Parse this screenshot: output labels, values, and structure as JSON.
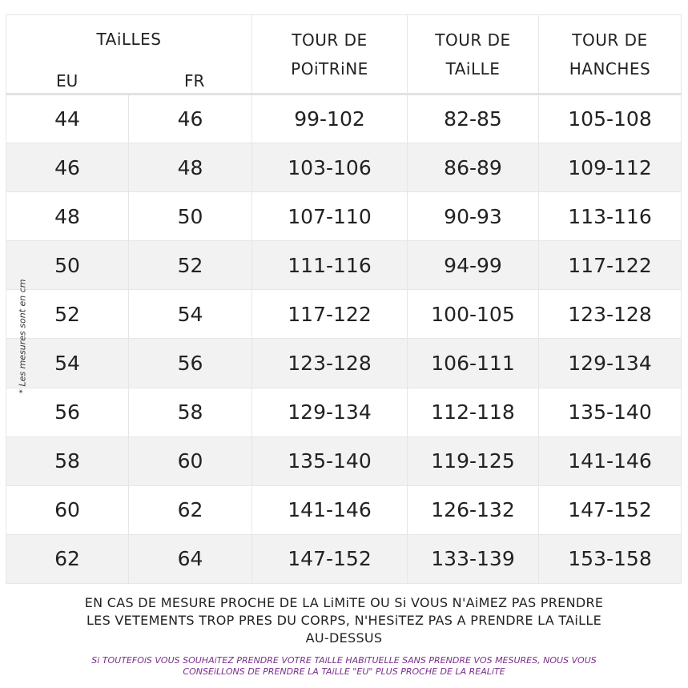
{
  "header": {
    "sizes_label": "TAiLLES",
    "eu_label": "EU",
    "fr_label": "FR",
    "chest": "TOUR DE\nPOiTRiNE",
    "waist": "TOUR DE\nTAiLLE",
    "hips": "TOUR DE\nHANCHES"
  },
  "rows": [
    {
      "eu": "44",
      "fr": "46",
      "chest": "99-102",
      "waist": "82-85",
      "hips": "105-108"
    },
    {
      "eu": "46",
      "fr": "48",
      "chest": "103-106",
      "waist": "86-89",
      "hips": "109-112"
    },
    {
      "eu": "48",
      "fr": "50",
      "chest": "107-110",
      "waist": "90-93",
      "hips": "113-116"
    },
    {
      "eu": "50",
      "fr": "52",
      "chest": "111-116",
      "waist": "94-99",
      "hips": "117-122"
    },
    {
      "eu": "52",
      "fr": "54",
      "chest": "117-122",
      "waist": "100-105",
      "hips": "123-128"
    },
    {
      "eu": "54",
      "fr": "56",
      "chest": "123-128",
      "waist": "106-111",
      "hips": "129-134"
    },
    {
      "eu": "56",
      "fr": "58",
      "chest": "129-134",
      "waist": "112-118",
      "hips": "135-140"
    },
    {
      "eu": "58",
      "fr": "60",
      "chest": "135-140",
      "waist": "119-125",
      "hips": "141-146"
    },
    {
      "eu": "60",
      "fr": "62",
      "chest": "141-146",
      "waist": "126-132",
      "hips": "147-152"
    },
    {
      "eu": "62",
      "fr": "64",
      "chest": "147-152",
      "waist": "133-139",
      "hips": "153-158"
    }
  ],
  "side_note": "* Les mesures sont en cm",
  "footer": {
    "main_line1": "EN CAS DE MESURE PROCHE DE LA LiMiTE OU Si VOUS N'AiMEZ PAS PRENDRE",
    "main_line2": "LES VETEMENTS TROP PRES DU CORPS, N'HESiTEZ PAS A PRENDRE LA TAiLLE",
    "main_line3": "AU-DESSUS",
    "sub_line1": "Si TOUTEFOiS VOUS SOUHAiTEZ PRENDRE VOTRE TAiLLE HABiTUELLE SANS PRENDRE VOS MESURES, NOUS VOUS",
    "sub_line2": "CONSEiLLONS DE PRENDRE LA TAiLLE \"EU\" PLUS PROCHE DE LA REALiTE"
  },
  "colors": {
    "row_alt_bg": "#f2f2f2",
    "footer_sub": "#7b2d8e"
  }
}
